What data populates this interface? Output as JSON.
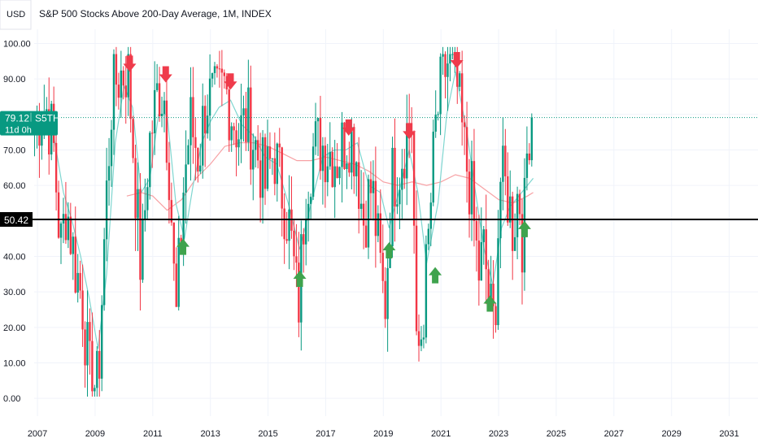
{
  "header": {
    "currency_label": "USD",
    "title": "S&P 500 Stocks Above 200-Day Average, 1M, INDEX"
  },
  "price_badge": {
    "value": "79.12",
    "symbol": "S5TH",
    "countdown": "11d 0h"
  },
  "reference_line": {
    "label": "50.42",
    "value": 50.42
  },
  "colors": {
    "up": "#089981",
    "down": "#f23645",
    "ma_fast": "#7fd6d0",
    "ma_slow": "#f7a1a4",
    "arrow_up": "#3fa34d",
    "arrow_down": "#ef3b4b",
    "badge": "#089981",
    "reference": "#000000"
  },
  "chart_data": {
    "type": "candlestick",
    "title": "S&P 500 Stocks Above 200-Day Average, 1M, INDEX",
    "x_range": [
      2005.7,
      2032.0
    ],
    "y_range": [
      -5.0,
      104.0
    ],
    "y_ticks": [
      "0.00",
      "10.00",
      "20.00",
      "30.00",
      "40.00",
      "50.00",
      "60.00",
      "70.00",
      "80.00",
      "90.00",
      "100.00"
    ],
    "x_ticks": [
      "2007",
      "2009",
      "2011",
      "2013",
      "2015",
      "2017",
      "2019",
      "2021",
      "2023",
      "2025",
      "2027",
      "2029",
      "2031"
    ],
    "last_close": 79.12,
    "candle_anchors": [
      [
        2006.9,
        78
      ],
      [
        2007.3,
        82
      ],
      [
        2007.55,
        72
      ],
      [
        2007.8,
        42
      ],
      [
        2008.0,
        55
      ],
      [
        2008.3,
        38
      ],
      [
        2008.55,
        28
      ],
      [
        2008.8,
        6
      ],
      [
        2009.1,
        3
      ],
      [
        2009.35,
        50
      ],
      [
        2009.6,
        88
      ],
      [
        2009.85,
        91
      ],
      [
        2010.15,
        93
      ],
      [
        2010.4,
        60
      ],
      [
        2010.6,
        35
      ],
      [
        2010.85,
        70
      ],
      [
        2011.2,
        88
      ],
      [
        2011.4,
        85
      ],
      [
        2011.6,
        62
      ],
      [
        2011.8,
        20
      ],
      [
        2012.05,
        58
      ],
      [
        2012.3,
        78
      ],
      [
        2012.6,
        68
      ],
      [
        2012.85,
        85
      ],
      [
        2013.2,
        83
      ],
      [
        2013.5,
        88
      ],
      [
        2013.75,
        80
      ],
      [
        2014.0,
        75
      ],
      [
        2014.3,
        78
      ],
      [
        2014.6,
        70
      ],
      [
        2014.9,
        60
      ],
      [
        2015.2,
        70
      ],
      [
        2015.45,
        60
      ],
      [
        2015.75,
        48
      ],
      [
        2016.05,
        25
      ],
      [
        2016.3,
        60
      ],
      [
        2016.55,
        70
      ],
      [
        2016.8,
        72
      ],
      [
        2017.1,
        70
      ],
      [
        2017.4,
        68
      ],
      [
        2017.6,
        72
      ],
      [
        2017.85,
        75
      ],
      [
        2018.05,
        70
      ],
      [
        2018.3,
        50
      ],
      [
        2018.6,
        60
      ],
      [
        2018.85,
        40
      ],
      [
        2019.05,
        25
      ],
      [
        2019.3,
        62
      ],
      [
        2019.55,
        65
      ],
      [
        2019.8,
        75
      ],
      [
        2020.0,
        78
      ],
      [
        2020.15,
        10
      ],
      [
        2020.35,
        20
      ],
      [
        2020.55,
        42
      ],
      [
        2020.8,
        75
      ],
      [
        2021.05,
        90
      ],
      [
        2021.3,
        96
      ],
      [
        2021.55,
        88
      ],
      [
        2021.8,
        70
      ],
      [
        2022.05,
        58
      ],
      [
        2022.3,
        35
      ],
      [
        2022.5,
        42
      ],
      [
        2022.7,
        25
      ],
      [
        2022.85,
        20
      ],
      [
        2023.05,
        62
      ],
      [
        2023.3,
        58
      ],
      [
        2023.5,
        48
      ],
      [
        2023.7,
        60
      ],
      [
        2023.85,
        42
      ],
      [
        2024.0,
        72
      ],
      [
        2024.1,
        80
      ],
      [
        2024.2,
        79.12
      ]
    ],
    "series": [
      {
        "kind": "moving_average_fast",
        "points": [
          [
            2007.5,
            77
          ],
          [
            2007.9,
            58
          ],
          [
            2008.2,
            50
          ],
          [
            2008.5,
            40
          ],
          [
            2008.8,
            28
          ],
          [
            2009.1,
            14
          ],
          [
            2009.4,
            35
          ],
          [
            2009.7,
            72
          ],
          [
            2010.0,
            88
          ],
          [
            2010.3,
            82
          ],
          [
            2010.6,
            58
          ],
          [
            2010.9,
            62
          ],
          [
            2011.2,
            80
          ],
          [
            2011.5,
            80
          ],
          [
            2011.8,
            55
          ],
          [
            2012.1,
            45
          ],
          [
            2012.4,
            60
          ],
          [
            2012.7,
            72
          ],
          [
            2013.0,
            78
          ],
          [
            2013.3,
            82
          ],
          [
            2013.7,
            84
          ],
          [
            2014.1,
            77
          ],
          [
            2014.5,
            74
          ],
          [
            2014.9,
            68
          ],
          [
            2015.3,
            66
          ],
          [
            2015.7,
            55
          ],
          [
            2016.1,
            42
          ],
          [
            2016.5,
            55
          ],
          [
            2016.9,
            68
          ],
          [
            2017.3,
            70
          ],
          [
            2017.7,
            70
          ],
          [
            2018.1,
            72
          ],
          [
            2018.5,
            60
          ],
          [
            2018.9,
            58
          ],
          [
            2019.2,
            48
          ],
          [
            2019.6,
            60
          ],
          [
            2019.9,
            70
          ],
          [
            2020.2,
            58
          ],
          [
            2020.5,
            38
          ],
          [
            2020.9,
            55
          ],
          [
            2021.2,
            80
          ],
          [
            2021.5,
            92
          ],
          [
            2021.9,
            75
          ],
          [
            2022.2,
            58
          ],
          [
            2022.5,
            42
          ],
          [
            2022.8,
            32
          ],
          [
            2023.1,
            48
          ],
          [
            2023.4,
            54
          ],
          [
            2023.8,
            58
          ],
          [
            2024.2,
            62
          ]
        ]
      },
      {
        "kind": "moving_average_slow",
        "points": [
          [
            2010.1,
            57
          ],
          [
            2010.6,
            58
          ],
          [
            2011.0,
            57
          ],
          [
            2011.5,
            53
          ],
          [
            2012.0,
            56
          ],
          [
            2012.5,
            62
          ],
          [
            2013.0,
            66
          ],
          [
            2013.5,
            71
          ],
          [
            2014.0,
            72
          ],
          [
            2014.5,
            72
          ],
          [
            2015.0,
            71
          ],
          [
            2015.5,
            69
          ],
          [
            2016.0,
            67
          ],
          [
            2016.5,
            67
          ],
          [
            2017.0,
            68
          ],
          [
            2017.5,
            67
          ],
          [
            2018.0,
            66
          ],
          [
            2018.5,
            64
          ],
          [
            2019.0,
            61
          ],
          [
            2019.5,
            60
          ],
          [
            2020.0,
            61
          ],
          [
            2020.5,
            60
          ],
          [
            2021.0,
            61
          ],
          [
            2021.5,
            63
          ],
          [
            2022.0,
            62
          ],
          [
            2022.5,
            59
          ],
          [
            2023.0,
            56
          ],
          [
            2023.5,
            55
          ],
          [
            2024.0,
            57
          ],
          [
            2024.2,
            58
          ]
        ]
      }
    ],
    "annotations": [
      {
        "kind": "arrow-down",
        "x": 2010.2,
        "y": 92
      },
      {
        "kind": "arrow-down",
        "x": 2011.45,
        "y": 89
      },
      {
        "kind": "arrow-down",
        "x": 2013.7,
        "y": 87
      },
      {
        "kind": "arrow-down",
        "x": 2017.8,
        "y": 74
      },
      {
        "kind": "arrow-down",
        "x": 2019.9,
        "y": 73
      },
      {
        "kind": "arrow-down",
        "x": 2021.55,
        "y": 93
      },
      {
        "kind": "arrow-up",
        "x": 2012.05,
        "y": 45
      },
      {
        "kind": "arrow-up",
        "x": 2016.1,
        "y": 36
      },
      {
        "kind": "arrow-up",
        "x": 2019.2,
        "y": 44
      },
      {
        "kind": "arrow-up",
        "x": 2020.8,
        "y": 37
      },
      {
        "kind": "arrow-up",
        "x": 2022.7,
        "y": 29
      },
      {
        "kind": "arrow-up",
        "x": 2023.9,
        "y": 50
      }
    ]
  }
}
